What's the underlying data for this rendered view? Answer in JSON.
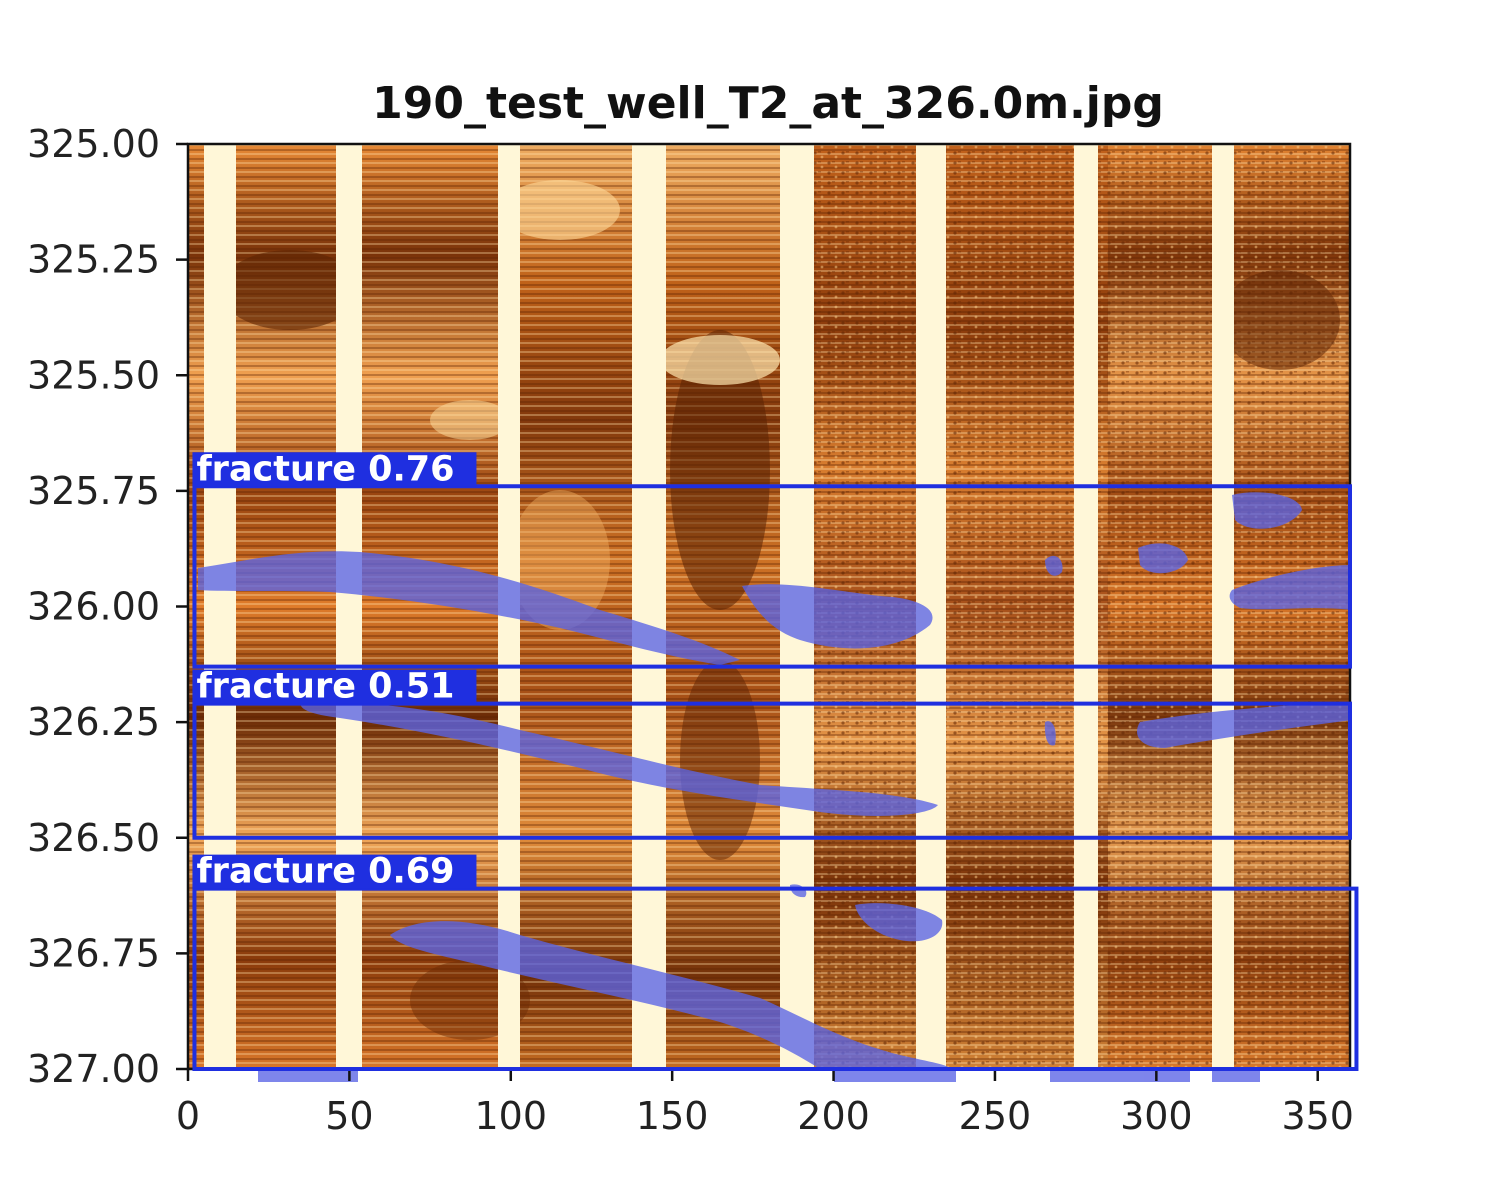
{
  "figure": {
    "title": "190_test_well_T2_at_326.0m.jpg",
    "y_axis": {
      "min": 325.0,
      "max": 327.0,
      "ticks": [
        {
          "value": 325.0,
          "label": "325.00"
        },
        {
          "value": 325.25,
          "label": "325.25"
        },
        {
          "value": 325.5,
          "label": "325.50"
        },
        {
          "value": 325.75,
          "label": "325.75"
        },
        {
          "value": 326.0,
          "label": "326.00"
        },
        {
          "value": 326.25,
          "label": "326.25"
        },
        {
          "value": 326.5,
          "label": "326.50"
        },
        {
          "value": 326.75,
          "label": "326.75"
        },
        {
          "value": 327.0,
          "label": "327.00"
        }
      ]
    },
    "x_axis": {
      "min": 0,
      "max": 360,
      "ticks": [
        {
          "value": 0,
          "label": "0"
        },
        {
          "value": 50,
          "label": "50"
        },
        {
          "value": 100,
          "label": "100"
        },
        {
          "value": 150,
          "label": "150"
        },
        {
          "value": 200,
          "label": "200"
        },
        {
          "value": 250,
          "label": "250"
        },
        {
          "value": 300,
          "label": "300"
        },
        {
          "value": 350,
          "label": "350"
        }
      ]
    },
    "colors": {
      "image_dark": "#6b2a05",
      "image_mid": "#c4651a",
      "image_light": "#f0a050",
      "pad_gap": "#fff7d8",
      "box": "#1f2fe0",
      "mask": "#5a64e6"
    },
    "detections": [
      {
        "label": "fracture 0.76",
        "x_min": 2,
        "x_max": 360,
        "depth_top": 325.74,
        "depth_bottom": 326.13
      },
      {
        "label": "fracture 0.51",
        "x_min": 2,
        "x_max": 360,
        "depth_top": 326.21,
        "depth_bottom": 326.5
      },
      {
        "label": "fracture 0.69",
        "x_min": 2,
        "x_max": 362,
        "depth_top": 326.61,
        "depth_bottom": 327.0
      }
    ]
  }
}
